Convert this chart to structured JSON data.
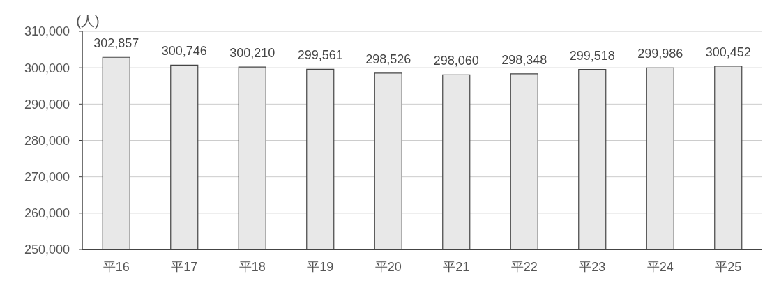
{
  "chart_data": {
    "type": "bar",
    "ylabel": "(人)",
    "categories": [
      "平16",
      "平17",
      "平18",
      "平19",
      "平20",
      "平21",
      "平22",
      "平23",
      "平24",
      "平25"
    ],
    "values": [
      302857,
      300746,
      300210,
      299561,
      298526,
      298060,
      298348,
      299518,
      299986,
      300452
    ],
    "value_labels": [
      "302,857",
      "300,746",
      "300,210",
      "299,561",
      "298,526",
      "298,060",
      "298,348",
      "299,518",
      "299,986",
      "300,452"
    ],
    "color": "#e8e8e8",
    "ylim": [
      250000,
      310000
    ],
    "yticks": [
      {
        "value": 250000,
        "label": "250,000"
      },
      {
        "value": 260000,
        "label": "260,000"
      },
      {
        "value": 270000,
        "label": "270,000"
      },
      {
        "value": 280000,
        "label": "280,000"
      },
      {
        "value": 290000,
        "label": "290,000"
      },
      {
        "value": 300000,
        "label": "300,000"
      },
      {
        "value": 310000,
        "label": "310,000"
      }
    ],
    "grid": "y"
  }
}
